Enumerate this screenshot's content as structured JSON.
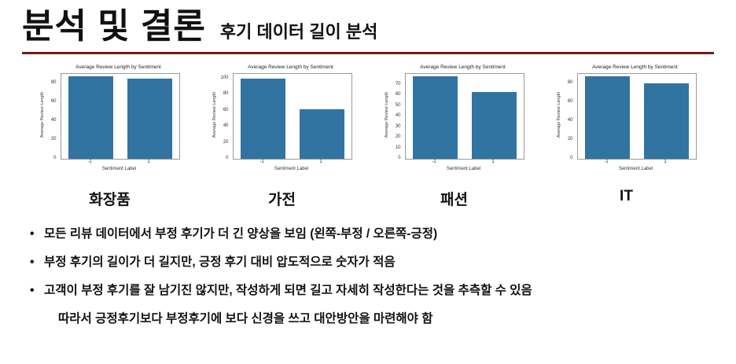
{
  "header": {
    "title": "분석 및 결론",
    "subtitle": "후기 데이터 길이 분석",
    "accent_color": "#701c1c"
  },
  "bullet_marker": "•",
  "chart_data": [
    {
      "type": "bar",
      "title": "Average Review Length by Sentiment",
      "xlabel": "Sentiment Label",
      "ylabel": "Average Review Length",
      "categories": [
        "-1",
        "1"
      ],
      "values": [
        88,
        85
      ],
      "ylim": [
        0,
        90
      ],
      "yticks": [
        0,
        20,
        40,
        60,
        80
      ],
      "color": "#3274a1",
      "caption": "화장품"
    },
    {
      "type": "bar",
      "title": "Average Review Length by Sentiment",
      "xlabel": "Sentiment Label",
      "ylabel": "Average Review Length",
      "categories": [
        "-1",
        "1"
      ],
      "values": [
        100,
        62
      ],
      "ylim": [
        0,
        105
      ],
      "yticks": [
        0,
        20,
        40,
        60,
        80,
        100
      ],
      "color": "#3274a1",
      "caption": "가전"
    },
    {
      "type": "bar",
      "title": "Average Review Length by Sentiment",
      "xlabel": "Sentiment Label",
      "ylabel": "Average Review Length",
      "categories": [
        "-1",
        "1"
      ],
      "values": [
        78,
        63
      ],
      "ylim": [
        0,
        80
      ],
      "yticks": [
        0,
        10,
        20,
        30,
        40,
        50,
        60,
        70
      ],
      "color": "#3274a1",
      "caption": "패션"
    },
    {
      "type": "bar",
      "title": "Average Review Length by Sentiment",
      "xlabel": "Sentiment Label",
      "ylabel": "Average Review Length",
      "categories": [
        "-1",
        "1"
      ],
      "values": [
        88,
        80
      ],
      "ylim": [
        0,
        90
      ],
      "yticks": [
        0,
        20,
        40,
        60,
        80
      ],
      "color": "#3274a1",
      "caption": "IT"
    }
  ],
  "bullets": [
    {
      "text": "모든 리뷰 데이터에서 부정 후기가 더 긴 양상을 보임 (왼쪽-부정 / 오른쪽-긍정)",
      "indent": false
    },
    {
      "text": "부정 후기의 길이가 더 길지만, 긍정 후기 대비 압도적으로 숫자가 적음",
      "indent": false
    },
    {
      "text": "고객이 부정 후기를 잘 남기진 않지만, 작성하게 되면 길고 자세히 작성한다는 것을 추측할 수 있음",
      "indent": false
    },
    {
      "text": "따라서 긍정후기보다 부정후기에 보다 신경을 쓰고 대안방안을 마련해야 함",
      "indent": true
    }
  ]
}
